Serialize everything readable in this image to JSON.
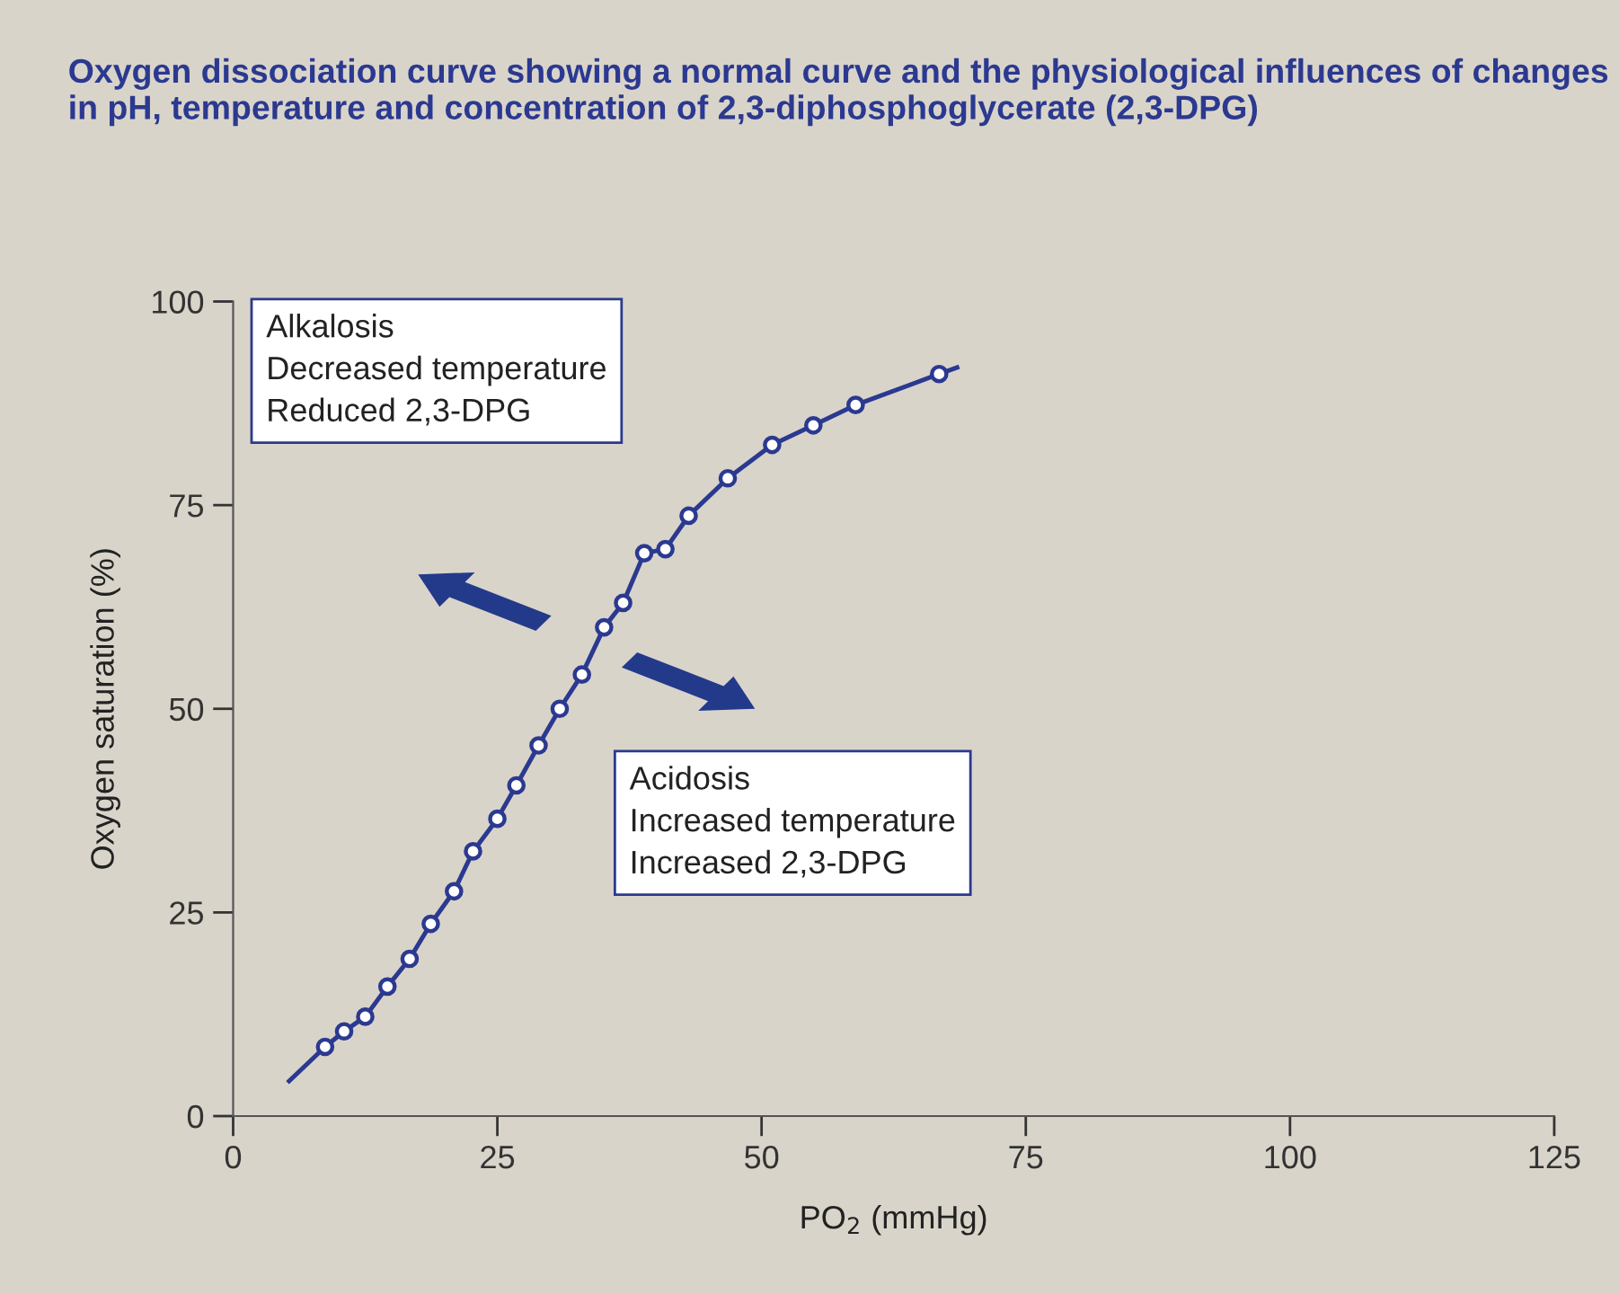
{
  "chart_data": {
    "type": "line",
    "title": "Oxygen dissociation curve showing a normal curve and the physiological influences of changes in pH, temperature and concentration of 2,3-diphosphoglycerate (2,3-DPG)",
    "xlabel": "PO$_{2}$ (mmHg)",
    "ylabel": "Oxygen saturation (%)",
    "xlim": [
      0,
      125
    ],
    "xticks": [
      0,
      25,
      50,
      75,
      100,
      125
    ],
    "ylim": [
      0,
      100
    ],
    "yticks": [
      0,
      25,
      50,
      75,
      100
    ],
    "grid": false,
    "legend": false,
    "series": [
      {
        "color": "#2b3990",
        "marker": "none",
        "line_style": "solid",
        "x": [
          5.3,
          8.7,
          10.5,
          12.5,
          14.6,
          16.7,
          18.7,
          20.9,
          22.7,
          25.0,
          26.8,
          28.9,
          30.9,
          33.0,
          35.1,
          36.9,
          38.9,
          40.9,
          43.1,
          46.8,
          51.0,
          54.9,
          58.9,
          66.8,
          68.5
        ],
        "values": [
          4.3,
          8.5,
          10.4,
          12.2,
          15.9,
          19.3,
          23.6,
          27.6,
          32.5,
          36.5,
          40.6,
          45.5,
          50.0,
          54.2,
          60.0,
          63.0,
          69.1,
          69.6,
          73.7,
          78.3,
          82.4,
          84.8,
          87.3,
          91.1,
          91.9
        ]
      },
      {
        "type": "scatter",
        "color": "#2b3990",
        "marker": "circle",
        "x": [
          8.7,
          10.5,
          12.5,
          14.6,
          16.7,
          18.7,
          20.9,
          22.7,
          25.0,
          26.8,
          28.9,
          30.9,
          33.0,
          35.1,
          36.9,
          38.9,
          40.9,
          43.1,
          46.8,
          51.0,
          54.9,
          58.9,
          66.8
        ],
        "values": [
          8.5,
          10.4,
          12.2,
          15.9,
          19.3,
          23.6,
          27.6,
          32.5,
          36.5,
          40.6,
          45.5,
          50.0,
          54.2,
          60.0,
          63.0,
          69.1,
          69.6,
          73.7,
          78.3,
          82.4,
          84.8,
          87.3,
          91.1
        ]
      }
    ],
    "annotations": [
      "Alkalosis\nDecreased temperature\nReduced 2,3-DPG",
      "Acidosis\nIncreased temperature\nIncreased 2,3-DPG"
    ]
  }
}
